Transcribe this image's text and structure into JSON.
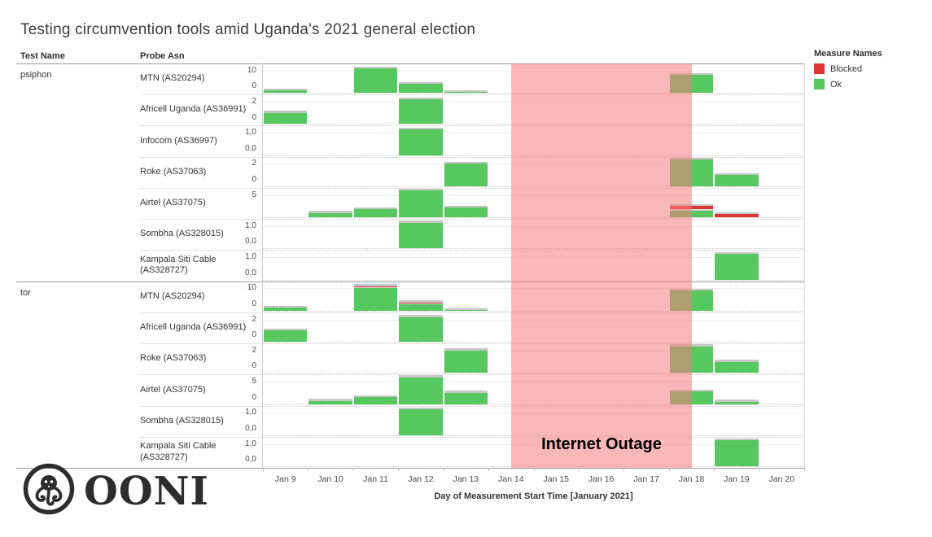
{
  "title": "Testing circumvention tools amid Uganda's 2021 general election",
  "columns": {
    "test_name": "Test Name",
    "probe_asn": "Probe Asn"
  },
  "legend": {
    "title": "Measure Names",
    "items": [
      {
        "label": "Blocked",
        "color": "#de3434"
      },
      {
        "label": "Ok",
        "color": "#57c75f"
      }
    ]
  },
  "outage": {
    "label": "Internet Outage",
    "start_day": "Jan 14",
    "end_day": "Jan 18",
    "color": "#f47b7d"
  },
  "axis": {
    "title": "Day of Measurement Start Time [January 2021]"
  },
  "logo": {
    "text": "OONI"
  },
  "chart_data": {
    "type": "bar",
    "stacked": true,
    "x": [
      "Jan 9",
      "Jan 10",
      "Jan 11",
      "Jan 12",
      "Jan 13",
      "Jan 14",
      "Jan 15",
      "Jan 16",
      "Jan 17",
      "Jan 18",
      "Jan 19",
      "Jan 20"
    ],
    "series_colors": {
      "ok": "#57c75f",
      "blocked": "#de3434",
      "cap": "#c7c7c7"
    },
    "legend_position": "top-right",
    "rows": [
      {
        "test": "psiphon",
        "probe": "MTN (AS20294)",
        "ticks": [
          "10",
          "0"
        ],
        "scale": 10,
        "bars": [
          {
            "day": "Jan 9",
            "ok": 1
          },
          {
            "day": "Jan 11",
            "ok": 11
          },
          {
            "day": "Jan 12",
            "ok": 4
          },
          {
            "day": "Jan 13",
            "ok": 0.4
          },
          {
            "day": "Jan 18",
            "ok": 8
          }
        ]
      },
      {
        "test": "psiphon",
        "probe": "Africell Uganda (AS36991)",
        "ticks": [
          "2",
          "0"
        ],
        "scale": 2,
        "bars": [
          {
            "day": "Jan 9",
            "ok": 1
          },
          {
            "day": "Jan 12",
            "ok": 2.2
          }
        ]
      },
      {
        "test": "psiphon",
        "probe": "Infocom (AS36997)",
        "ticks": [
          "1,0",
          "0,0"
        ],
        "scale": 1,
        "bars": [
          {
            "day": "Jan 12",
            "ok": 1.15
          }
        ]
      },
      {
        "test": "psiphon",
        "probe": "Roke (AS37063)",
        "ticks": [
          "2",
          "0"
        ],
        "scale": 2,
        "bars": [
          {
            "day": "Jan 13",
            "ok": 2
          },
          {
            "day": "Jan 18",
            "ok": 3
          },
          {
            "day": "Jan 19",
            "ok": 1
          }
        ]
      },
      {
        "test": "psiphon",
        "probe": "Airtel (AS37075)",
        "ticks": [
          "5"
        ],
        "scale": 5,
        "bars": [
          {
            "day": "Jan 10",
            "ok": 1
          },
          {
            "day": "Jan 11",
            "ok": 1.8
          },
          {
            "day": "Jan 12",
            "ok": 6.2
          },
          {
            "day": "Jan 13",
            "ok": 2.2
          },
          {
            "day": "Jan 18",
            "ok": 1.5,
            "blocked": 0.8
          },
          {
            "day": "Jan 19",
            "blocked": 0.7
          }
        ]
      },
      {
        "test": "psiphon",
        "probe": "Sombha (AS328015)",
        "ticks": [
          "1,0",
          "0,0"
        ],
        "scale": 1,
        "bars": [
          {
            "day": "Jan 12",
            "ok": 1.15
          }
        ]
      },
      {
        "test": "psiphon",
        "probe": "Kampala Siti Cable (AS328727)",
        "ticks": [
          "1,0",
          "0,0"
        ],
        "scale": 1,
        "bars": [
          {
            "day": "Jan 19",
            "ok": 1.15
          }
        ]
      },
      {
        "test": "tor",
        "probe": "MTN (AS20294)",
        "ticks": [
          "10",
          "0"
        ],
        "scale": 10,
        "bars": [
          {
            "day": "Jan 9",
            "ok": 1.3
          },
          {
            "day": "Jan 11",
            "ok": 10,
            "blocked": 0.5
          },
          {
            "day": "Jan 12",
            "ok": 2.8,
            "blocked": 0.4
          },
          {
            "day": "Jan 13",
            "ok": 0.3
          },
          {
            "day": "Jan 18",
            "ok": 9
          }
        ]
      },
      {
        "test": "tor",
        "probe": "Africell Uganda (AS36991)",
        "ticks": [
          "2",
          "0"
        ],
        "scale": 2,
        "bars": [
          {
            "day": "Jan 9",
            "ok": 1
          },
          {
            "day": "Jan 12",
            "ok": 2.2
          }
        ]
      },
      {
        "test": "tor",
        "probe": "Roke (AS37063)",
        "ticks": [
          "2",
          "0"
        ],
        "scale": 2,
        "bars": [
          {
            "day": "Jan 13",
            "ok": 2
          },
          {
            "day": "Jan 18",
            "ok": 2.8
          },
          {
            "day": "Jan 19",
            "ok": 1
          }
        ]
      },
      {
        "test": "tor",
        "probe": "Airtel (AS37075)",
        "ticks": [
          "5",
          "0"
        ],
        "scale": 5,
        "bars": [
          {
            "day": "Jan 10",
            "ok": 0.7
          },
          {
            "day": "Jan 11",
            "ok": 1.5
          },
          {
            "day": "Jan 12",
            "ok": 6.5
          },
          {
            "day": "Jan 13",
            "ok": 2.5
          },
          {
            "day": "Jan 18",
            "ok": 2.8
          },
          {
            "day": "Jan 19",
            "ok": 0.5
          }
        ]
      },
      {
        "test": "tor",
        "probe": "Sombha (AS328015)",
        "ticks": [
          "1,0",
          "0,0"
        ],
        "scale": 1,
        "bars": [
          {
            "day": "Jan 12",
            "ok": 1.15
          }
        ]
      },
      {
        "test": "tor",
        "probe": "Kampala Siti Cable (AS328727)",
        "ticks": [
          "1,0",
          "0,0"
        ],
        "scale": 1,
        "bars": [
          {
            "day": "Jan 19",
            "ok": 1.15
          }
        ]
      }
    ]
  }
}
